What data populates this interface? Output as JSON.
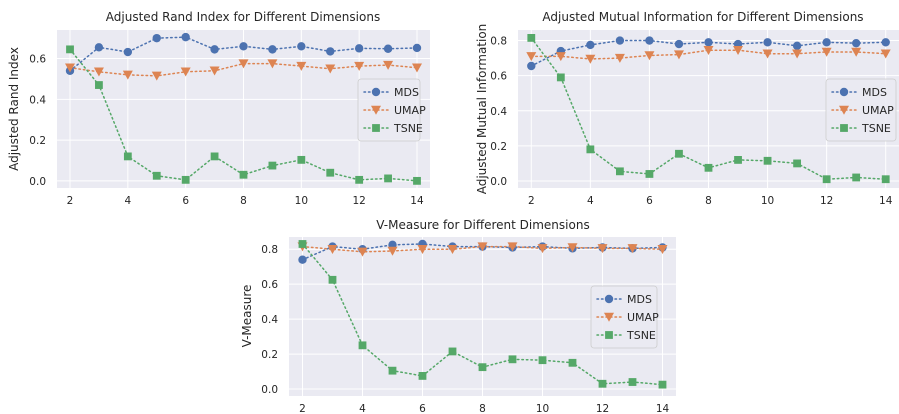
{
  "colors": {
    "background": "#eaeaf2",
    "grid": "#ffffff",
    "mds": "#4c72b0",
    "umap": "#dd8452",
    "tsne": "#55a868"
  },
  "chart_data": [
    {
      "type": "line",
      "title": "Adjusted Rand Index for Different Dimensions",
      "xlabel": "",
      "ylabel": "Adjusted Rand Index",
      "x": [
        2,
        3,
        4,
        5,
        6,
        7,
        8,
        9,
        10,
        11,
        12,
        13,
        14
      ],
      "xticks": [
        "2",
        "4",
        "6",
        "8",
        "10",
        "12",
        "14"
      ],
      "yticks": [
        "0.0",
        "0.2",
        "0.4",
        "0.6"
      ],
      "ylim": [
        -0.035,
        0.74
      ],
      "xlim": [
        1.55,
        14.45
      ],
      "grid": true,
      "legend_position": "center-right",
      "series": [
        {
          "name": "MDS",
          "marker": "circle",
          "values": [
            0.54,
            0.655,
            0.632,
            0.7,
            0.705,
            0.645,
            0.66,
            0.645,
            0.66,
            0.635,
            0.65,
            0.648,
            0.652
          ]
        },
        {
          "name": "UMAP",
          "marker": "triangle-down",
          "values": [
            0.555,
            0.535,
            0.52,
            0.515,
            0.535,
            0.54,
            0.575,
            0.575,
            0.563,
            0.55,
            0.563,
            0.568,
            0.555
          ]
        },
        {
          "name": "TSNE",
          "marker": "square",
          "values": [
            0.645,
            0.47,
            0.12,
            0.025,
            0.005,
            0.12,
            0.03,
            0.075,
            0.103,
            0.04,
            0.005,
            0.012,
            0.0
          ]
        }
      ]
    },
    {
      "type": "line",
      "title": "Adjusted Mutual Information for Different Dimensions",
      "xlabel": "",
      "ylabel": "Adjusted Mutual Information",
      "x": [
        2,
        3,
        4,
        5,
        6,
        7,
        8,
        9,
        10,
        11,
        12,
        13,
        14
      ],
      "xticks": [
        "2",
        "4",
        "6",
        "8",
        "10",
        "12",
        "14"
      ],
      "yticks": [
        "0.0",
        "0.2",
        "0.4",
        "0.6",
        "0.8"
      ],
      "ylim": [
        -0.04,
        0.86
      ],
      "xlim": [
        1.55,
        14.45
      ],
      "grid": true,
      "legend_position": "center-right",
      "series": [
        {
          "name": "MDS",
          "marker": "circle",
          "values": [
            0.655,
            0.74,
            0.775,
            0.8,
            0.8,
            0.78,
            0.79,
            0.78,
            0.79,
            0.77,
            0.79,
            0.785,
            0.79
          ]
        },
        {
          "name": "UMAP",
          "marker": "triangle-down",
          "values": [
            0.71,
            0.71,
            0.695,
            0.7,
            0.715,
            0.72,
            0.745,
            0.745,
            0.725,
            0.725,
            0.735,
            0.735,
            0.725
          ]
        },
        {
          "name": "TSNE",
          "marker": "square",
          "values": [
            0.815,
            0.59,
            0.18,
            0.055,
            0.04,
            0.155,
            0.075,
            0.12,
            0.115,
            0.1,
            0.01,
            0.02,
            0.01
          ]
        }
      ]
    },
    {
      "type": "line",
      "title": "V-Measure for Different Dimensions",
      "xlabel": "",
      "ylabel": "V-Measure",
      "x": [
        2,
        3,
        4,
        5,
        6,
        7,
        8,
        9,
        10,
        11,
        12,
        13,
        14
      ],
      "xticks": [
        "2",
        "4",
        "6",
        "8",
        "10",
        "12",
        "14"
      ],
      "yticks": [
        "0.0",
        "0.2",
        "0.4",
        "0.6",
        "0.8"
      ],
      "ylim": [
        -0.04,
        0.87
      ],
      "xlim": [
        1.55,
        14.45
      ],
      "grid": true,
      "legend_position": "center-right",
      "series": [
        {
          "name": "MDS",
          "marker": "circle",
          "values": [
            0.74,
            0.815,
            0.8,
            0.825,
            0.83,
            0.815,
            0.815,
            0.81,
            0.815,
            0.805,
            0.81,
            0.805,
            0.81
          ]
        },
        {
          "name": "UMAP",
          "marker": "triangle-down",
          "values": [
            0.815,
            0.8,
            0.785,
            0.79,
            0.8,
            0.8,
            0.815,
            0.815,
            0.805,
            0.81,
            0.805,
            0.805,
            0.8
          ]
        },
        {
          "name": "TSNE",
          "marker": "square",
          "values": [
            0.83,
            0.625,
            0.25,
            0.105,
            0.075,
            0.215,
            0.125,
            0.17,
            0.165,
            0.15,
            0.03,
            0.04,
            0.025
          ]
        }
      ]
    }
  ]
}
